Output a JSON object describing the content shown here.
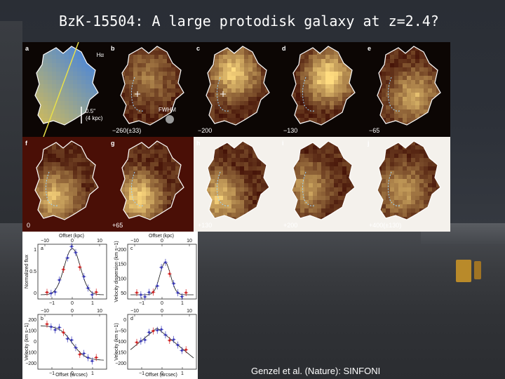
{
  "title": "BzK-15504: A large protodisk galaxy at z=2.4?",
  "credit": "Genzel et al. (Nature): SINFONI",
  "maps": {
    "panels": [
      {
        "label": "a",
        "velocity": "",
        "tag": "Hα"
      },
      {
        "label": "b",
        "velocity": "−260(±33)",
        "tag": "FWHM"
      },
      {
        "label": "c",
        "velocity": "−200",
        "tag": ""
      },
      {
        "label": "d",
        "velocity": "−130",
        "tag": ""
      },
      {
        "label": "e",
        "velocity": "−65",
        "tag": ""
      },
      {
        "label": "f",
        "velocity": "0",
        "tag": ""
      },
      {
        "label": "g",
        "velocity": "+65",
        "tag": ""
      },
      {
        "label": "h",
        "velocity": "+130",
        "tag": ""
      },
      {
        "label": "i",
        "velocity": "+200",
        "tag": ""
      },
      {
        "label": "j",
        "velocity": "+400(±130)",
        "tag": ""
      }
    ],
    "scalebar": {
      "line1": "0.5″",
      "line2": "(4 kpc)"
    }
  },
  "plots": {
    "top_axis_label": "Offset (kpc)",
    "bottom_axis_label": "Offset (arcsec)",
    "kpc_ticks": [
      "−10",
      "0",
      "10"
    ],
    "arcsec_ticks": [
      "−1",
      "0",
      "1"
    ],
    "panels": [
      {
        "label": "a",
        "ylabel": "Normalized flux",
        "yticks": [
          "1",
          "0.5",
          "0"
        ]
      },
      {
        "label": "c",
        "ylabel": "Velocity dispersion (km s−1)",
        "yticks": [
          "200",
          "150",
          "100",
          "50"
        ]
      },
      {
        "label": "b",
        "ylabel": "Velocity (km s−1)",
        "yticks": [
          "200",
          "100",
          "0",
          "−100",
          "−200"
        ]
      },
      {
        "label": "d",
        "ylabel": "Velocity (km s−1)",
        "yticks": [
          "0",
          "−50",
          "−100",
          "−150",
          "−200"
        ]
      }
    ]
  },
  "colors": {
    "map_bg": "#0c0604",
    "map_orange": "#b5531f",
    "map_hot": "#f6d98a",
    "contour": "#ffffff",
    "plot_blue": "#3b3bb8",
    "plot_red": "#d02020"
  }
}
